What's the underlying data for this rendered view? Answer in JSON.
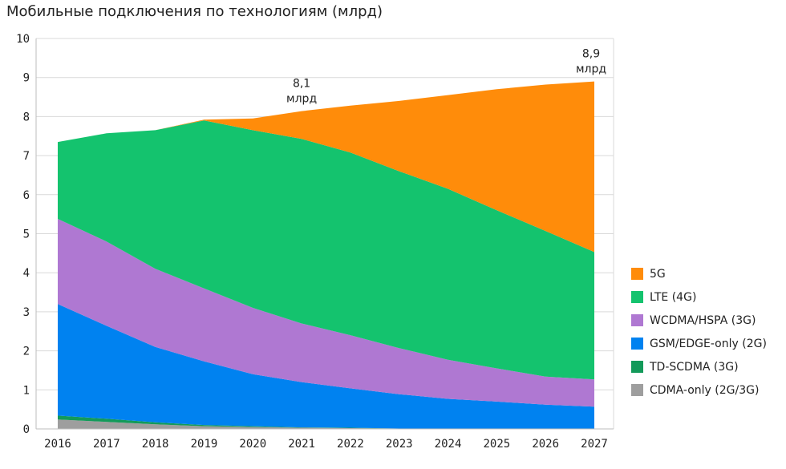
{
  "chart_data": {
    "type": "area",
    "stacked": true,
    "title": "Мобильные подключения по технологиям (млрд)",
    "xlabel": "",
    "ylabel": "",
    "x": [
      "2016",
      "2017",
      "2018",
      "2019",
      "2020",
      "2021",
      "2022",
      "2023",
      "2024",
      "2025",
      "2026",
      "2027"
    ],
    "ylim": [
      0,
      10
    ],
    "yticks": [
      "0",
      "1",
      "2",
      "3",
      "4",
      "5",
      "6",
      "7",
      "8",
      "9",
      "10"
    ],
    "grid": true,
    "legend_position": "right",
    "series": [
      {
        "name": "CDMA-only (2G/3G)",
        "color": "#9e9e9e",
        "values": [
          0.24,
          0.18,
          0.12,
          0.07,
          0.05,
          0.03,
          0.02,
          0.01,
          0.01,
          0.01,
          0.0,
          0.0
        ]
      },
      {
        "name": "TD-SCDMA (3G)",
        "color": "#139a5a",
        "values": [
          0.1,
          0.08,
          0.05,
          0.03,
          0.02,
          0.01,
          0.01,
          0.0,
          0.0,
          0.0,
          0.0,
          0.0
        ]
      },
      {
        "name": "GSM/EDGE-only (2G)",
        "color": "#0082f0",
        "values": [
          2.86,
          2.38,
          1.93,
          1.63,
          1.33,
          1.16,
          1.01,
          0.88,
          0.76,
          0.69,
          0.62,
          0.57
        ]
      },
      {
        "name": "WCDMA/HSPA (3G)",
        "color": "#af78d2",
        "values": [
          2.18,
          2.16,
          2.0,
          1.87,
          1.7,
          1.5,
          1.36,
          1.18,
          1.0,
          0.85,
          0.72,
          0.7
        ]
      },
      {
        "name": "LTE (4G)",
        "color": "#14c36e",
        "values": [
          1.97,
          2.77,
          3.55,
          4.3,
          4.55,
          4.73,
          4.68,
          4.53,
          4.38,
          4.05,
          3.73,
          3.26
        ]
      },
      {
        "name": "5G",
        "color": "#ff8c0a",
        "values": [
          0.0,
          0.0,
          0.0,
          0.02,
          0.3,
          0.71,
          1.2,
          1.8,
          2.4,
          3.1,
          3.75,
          4.37
        ]
      }
    ],
    "annotations": [
      {
        "x": "2021",
        "value": "8,1",
        "unit": "млрд"
      },
      {
        "x": "2027",
        "value": "8,9",
        "unit": "млрд"
      }
    ]
  }
}
